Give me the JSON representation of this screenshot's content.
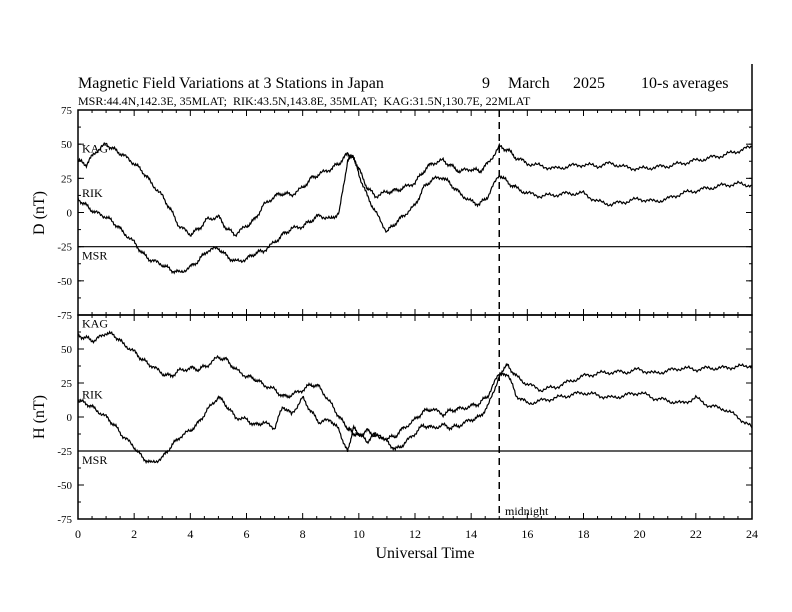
{
  "chart_data": {
    "type": "line",
    "title": "Magnetic Field Variations at 3 Stations in Japan",
    "date_day": "9",
    "date_month": "March",
    "date_year": "2025",
    "sampling": "10-s averages",
    "subtitle": "MSR:44.4N,142.3E, 35MLAT;  RIK:43.5N,143.8E, 35MLAT;  KAG:31.5N,130.7E, 22MLAT",
    "xlabel": "Universal Time",
    "xlim": [
      0,
      24
    ],
    "x_ticks": [
      "0",
      "2",
      "4",
      "6",
      "8",
      "10",
      "12",
      "14",
      "16",
      "18",
      "20",
      "22",
      "24"
    ],
    "midnight_x": 15,
    "midnight_label": "midnight",
    "panels": [
      {
        "ylabel": "D (nT)",
        "ylim": [
          -75,
          75
        ],
        "y_ticks": [
          "75",
          "50",
          "25",
          "0",
          "-25",
          "-50",
          "-75"
        ],
        "series": [
          {
            "name": "KAG",
            "x": [
              0,
              0.3,
              0.6,
              1.0,
              1.3,
              1.6,
              2.0,
              2.3,
              2.6,
              3.0,
              3.3,
              3.6,
              4.0,
              4.3,
              4.6,
              5.0,
              5.3,
              5.6,
              6.0,
              6.3,
              6.6,
              7.0,
              7.3,
              7.6,
              8.0,
              8.3,
              8.6,
              9.0,
              9.3,
              9.6,
              9.8,
              10.0,
              10.3,
              10.6,
              11.0,
              11.3,
              11.6,
              12.0,
              12.3,
              12.6,
              13.0,
              13.3,
              13.6,
              14.0,
              14.3,
              14.6,
              15.0,
              15.3,
              15.6,
              16.0,
              16.5,
              17.0,
              17.5,
              18.0,
              18.5,
              19.0,
              19.5,
              20.0,
              20.5,
              21.0,
              21.5,
              22.0,
              22.5,
              23.0,
              23.5,
              24.0
            ],
            "y": [
              38,
              35,
              44,
              50,
              46,
              42,
              36,
              30,
              22,
              12,
              2,
              -10,
              -16,
              -12,
              -5,
              -3,
              -12,
              -16,
              -10,
              -5,
              5,
              12,
              14,
              13,
              18,
              25,
              28,
              32,
              36,
              43,
              40,
              32,
              18,
              12,
              15,
              16,
              18,
              22,
              30,
              36,
              38,
              34,
              30,
              32,
              30,
              36,
              48,
              46,
              40,
              36,
              34,
              32,
              34,
              35,
              34,
              36,
              33,
              32,
              33,
              34,
              36,
              38,
              40,
              42,
              45,
              48
            ]
          },
          {
            "name": "RIK",
            "x": [
              0,
              0.3,
              0.6,
              1.0,
              1.3,
              1.6,
              2.0,
              2.3,
              2.6,
              3.0,
              3.3,
              3.6,
              4.0,
              4.3,
              4.6,
              5.0,
              5.3,
              5.6,
              6.0,
              6.3,
              6.6,
              7.0,
              7.3,
              7.6,
              8.0,
              8.3,
              8.6,
              9.0,
              9.3,
              9.6,
              9.8,
              10.0,
              10.3,
              10.6,
              11.0,
              11.3,
              11.6,
              12.0,
              12.3,
              12.6,
              13.0,
              13.3,
              13.6,
              14.0,
              14.3,
              14.6,
              15.0,
              15.3,
              15.6,
              16.0,
              16.5,
              17.0,
              17.5,
              18.0,
              18.5,
              19.0,
              19.5,
              20.0,
              20.5,
              21.0,
              21.5,
              22.0,
              22.5,
              23.0,
              23.5,
              24.0
            ],
            "y": [
              10,
              5,
              0,
              -3,
              -8,
              -14,
              -22,
              -30,
              -35,
              -38,
              -42,
              -44,
              -40,
              -35,
              -28,
              -26,
              -32,
              -36,
              -34,
              -30,
              -28,
              -22,
              -16,
              -12,
              -10,
              -6,
              -2,
              -5,
              0,
              38,
              42,
              28,
              12,
              0,
              -14,
              -8,
              -2,
              5,
              18,
              24,
              26,
              20,
              14,
              8,
              6,
              12,
              28,
              22,
              18,
              14,
              12,
              13,
              14,
              14,
              8,
              6,
              8,
              10,
              8,
              10,
              14,
              16,
              18,
              20,
              21,
              20
            ]
          },
          {
            "name": "MSR",
            "x": [
              0,
              24
            ],
            "y": [
              -25,
              -25
            ]
          }
        ]
      },
      {
        "ylabel": "H (nT)",
        "ylim": [
          -75,
          75
        ],
        "y_ticks": [
          "75",
          "50",
          "25",
          "0",
          "-25",
          "-50",
          "-75"
        ],
        "series": [
          {
            "name": "KAG",
            "x": [
              0,
              0.3,
              0.6,
              1.0,
              1.3,
              1.6,
              2.0,
              2.3,
              2.6,
              3.0,
              3.3,
              3.6,
              4.0,
              4.3,
              4.6,
              5.0,
              5.3,
              5.6,
              6.0,
              6.3,
              6.6,
              7.0,
              7.3,
              7.6,
              8.0,
              8.3,
              8.6,
              9.0,
              9.3,
              9.6,
              9.8,
              10.0,
              10.3,
              10.6,
              11.0,
              11.3,
              11.6,
              12.0,
              12.3,
              12.6,
              13.0,
              13.3,
              13.6,
              14.0,
              14.3,
              14.6,
              15.0,
              15.3,
              15.6,
              16.0,
              16.5,
              17.0,
              17.5,
              18.0,
              18.5,
              19.0,
              19.5,
              20.0,
              20.5,
              21.0,
              21.5,
              22.0,
              22.5,
              23.0,
              23.5,
              24.0
            ],
            "y": [
              60,
              58,
              56,
              62,
              60,
              54,
              48,
              42,
              38,
              32,
              30,
              34,
              36,
              35,
              38,
              44,
              42,
              35,
              30,
              28,
              24,
              20,
              15,
              16,
              20,
              24,
              22,
              10,
              0,
              -8,
              -12,
              -14,
              -10,
              -14,
              -16,
              -14,
              -8,
              -2,
              4,
              6,
              2,
              5,
              6,
              8,
              10,
              16,
              32,
              38,
              30,
              24,
              20,
              22,
              26,
              30,
              32,
              33,
              33,
              35,
              32,
              34,
              36,
              35,
              36,
              36,
              37,
              38
            ]
          },
          {
            "name": "RIK",
            "x": [
              0,
              0.3,
              0.6,
              1.0,
              1.3,
              1.6,
              2.0,
              2.3,
              2.6,
              3.0,
              3.3,
              3.6,
              4.0,
              4.3,
              4.6,
              5.0,
              5.3,
              5.6,
              6.0,
              6.3,
              6.6,
              7.0,
              7.3,
              7.6,
              8.0,
              8.3,
              8.6,
              9.0,
              9.3,
              9.6,
              9.8,
              10.0,
              10.3,
              10.6,
              11.0,
              11.3,
              11.6,
              12.0,
              12.3,
              12.6,
              13.0,
              13.3,
              13.6,
              14.0,
              14.3,
              14.6,
              15.0,
              15.3,
              15.6,
              16.0,
              16.5,
              17.0,
              17.5,
              18.0,
              18.5,
              19.0,
              19.5,
              20.0,
              20.5,
              21.0,
              21.5,
              22.0,
              22.5,
              23.0,
              23.5,
              24.0
            ],
            "y": [
              12,
              10,
              6,
              0,
              -6,
              -14,
              -22,
              -30,
              -34,
              -30,
              -22,
              -15,
              -10,
              -4,
              5,
              15,
              8,
              0,
              -2,
              -6,
              -4,
              -8,
              8,
              2,
              14,
              4,
              -4,
              -2,
              -10,
              -26,
              -8,
              -12,
              -18,
              -12,
              -18,
              -24,
              -20,
              -12,
              -6,
              -8,
              -6,
              -8,
              -6,
              -2,
              0,
              8,
              30,
              32,
              16,
              10,
              12,
              14,
              16,
              18,
              16,
              14,
              16,
              18,
              14,
              12,
              10,
              14,
              8,
              6,
              0,
              -8
            ]
          },
          {
            "name": "MSR",
            "x": [
              0,
              24
            ],
            "y": [
              -25,
              -25
            ]
          }
        ]
      }
    ]
  }
}
